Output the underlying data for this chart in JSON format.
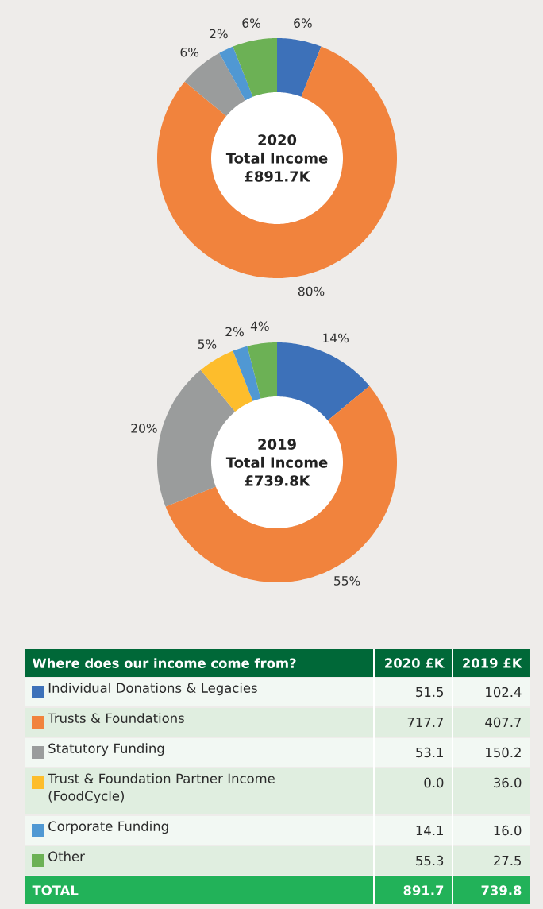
{
  "chart_data": [
    {
      "type": "donut",
      "title": "2020",
      "subtitle": "Total Income",
      "annotations": [
        "£891.7K"
      ],
      "categories": [
        null,
        null,
        null,
        null,
        null,
        null
      ],
      "values": [
        6,
        80,
        6,
        0,
        2,
        6
      ],
      "value_labels": [
        "6%",
        "80%",
        "6%",
        null,
        "2%",
        "6%"
      ],
      "colors": [
        "#3d71b9",
        "#f1833d",
        "#9a9c9c",
        "#fdbd2c",
        "#5098d3",
        "#6cb155"
      ]
    },
    {
      "type": "donut",
      "title": "2019",
      "subtitle": "Total Income",
      "annotations": [
        "£739.8K"
      ],
      "categories": [
        null,
        null,
        null,
        null,
        null,
        null
      ],
      "values": [
        14,
        55,
        20,
        5,
        2,
        4
      ],
      "value_labels": [
        "14%",
        "55%",
        "20%",
        "5%",
        "2%",
        "4%"
      ],
      "colors": [
        "#3d71b9",
        "#f1833d",
        "#9a9c9c",
        "#fdbd2c",
        "#5098d3",
        "#6cb155"
      ]
    },
    {
      "type": "other",
      "title": "Where does our income come from?",
      "categories": [
        "Individual Donations & Legacies",
        "Trusts & Foundations",
        "Statutory Funding",
        "Trust & Foundation Partner Income (FoodCycle)",
        "Corporate Funding",
        "Other"
      ],
      "colors": [
        "#3d71b9",
        "#f1833d",
        "#9a9c9c",
        "#fdbd2c",
        "#5098d3",
        "#6cb155"
      ],
      "annotations": [
        "2020 £K",
        "2019 £K",
        "51.5",
        "102.4",
        "717.7",
        "407.7",
        "53.1",
        "150.2",
        "0.0",
        "36.0",
        "14.1",
        "16.0",
        "55.3",
        "27.5",
        "TOTAL"
      ],
      "totals": [
        "891.7",
        "739.8"
      ]
    }
  ]
}
